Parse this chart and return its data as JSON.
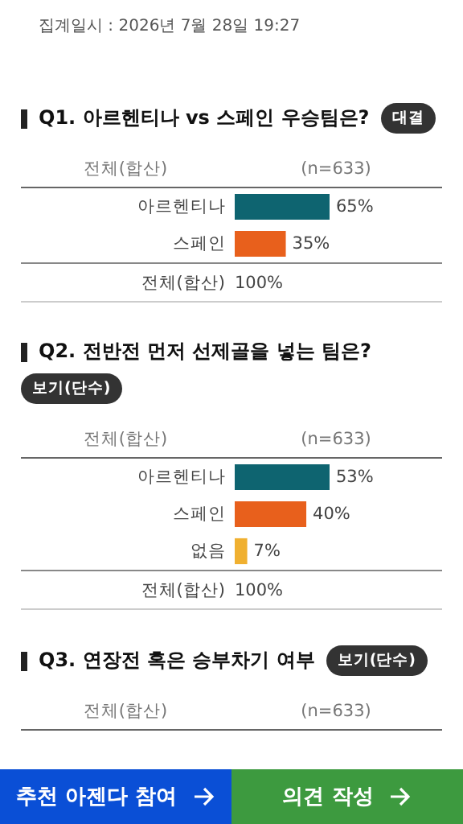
{
  "chart_data": [
    {
      "type": "other",
      "annotations": [
        "집계일시 : 2026년 7월 28일 19:27"
      ]
    },
    {
      "type": "bar",
      "orientation": "horizontal",
      "title": "Q1. 아르헨티나 vs 스페인 우승팀은?",
      "categories": [
        "아르헨티나",
        "스페인"
      ],
      "values": [
        65,
        35
      ],
      "value_labels": [
        "65%",
        "35%"
      ],
      "colors": [
        "#0e6470",
        "#e8601c"
      ],
      "tick_labels": false,
      "annotations": [
        "대결",
        "전체(합산)",
        "(n=633)",
        "전체(합산)",
        "100%"
      ]
    },
    {
      "type": "bar",
      "orientation": "horizontal",
      "title": "Q2. 전반전 먼저 선제골을 넣는 팀은?",
      "categories": [
        "아르헨티나",
        "스페인",
        "없음"
      ],
      "values": [
        53,
        40,
        7
      ],
      "value_labels": [
        "53%",
        "40%",
        "7%"
      ],
      "colors": [
        "#0e6470",
        "#e8601c",
        "#f0b030"
      ],
      "tick_labels": false,
      "annotations": [
        "보기(단수)",
        "전체(합산)",
        "(n=633)",
        "전체(합산)",
        "100%"
      ]
    },
    {
      "type": "other",
      "title": "Q3. 연장전 혹은 승부차기 여부",
      "annotations": [
        "보기(단수)",
        "전체(합산)",
        "(n=633)"
      ]
    },
    {
      "type": "other",
      "annotations": [
        "추천 아젠다 참여",
        "의견 작성"
      ]
    }
  ]
}
